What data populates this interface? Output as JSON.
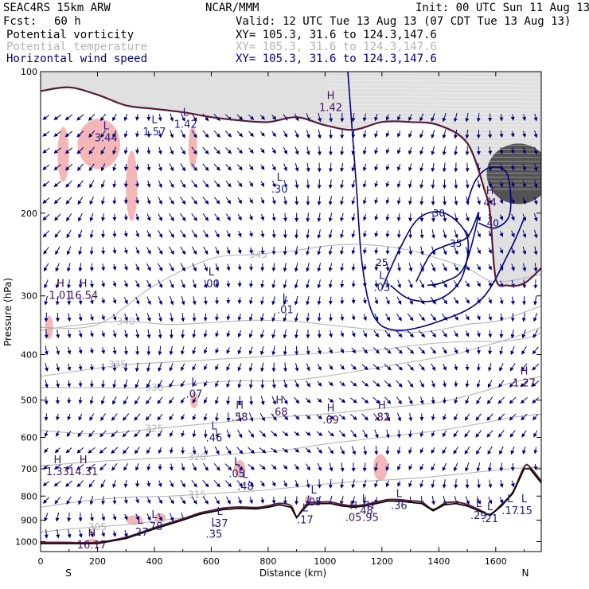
{
  "header": {
    "model": "SEAC4RS 15km ARW",
    "forecast_label": "Fcst:",
    "forecast_value": "60 h",
    "center": "NCAR/MMM",
    "init": "Init: 00 UTC Sun 11 Aug 13",
    "valid": "Valid: 12 UTC Tue 13 Aug 13 (07 CDT Tue 13 Aug 13)"
  },
  "legend": [
    {
      "name": "Potential vorticity",
      "xy": "XY= 105.3, 31.6 to 124.3,147.6",
      "color": "#000000"
    },
    {
      "name": "Potential temperature",
      "xy": "XY= 105.3, 31.6 to 124.3,147.6",
      "color": "#b4b4b4"
    },
    {
      "name": "Horizontal wind speed",
      "xy": "XY= 105.3, 31.6 to 124.3,147.6",
      "color": "#000080"
    }
  ],
  "chart_data": {
    "type": "cross-section",
    "xlabel": "Distance (km)",
    "ylabel": "Pressure (hPa)",
    "xlim": [
      0,
      1760
    ],
    "ylim": [
      100,
      1050
    ],
    "y_scale": "log-pressure (inverted)",
    "x_ticks": [
      0,
      200,
      400,
      600,
      800,
      1000,
      1200,
      1400,
      1600
    ],
    "y_ticks": [
      100,
      200,
      300,
      400,
      500,
      600,
      700,
      800,
      900,
      1000
    ],
    "x_end_labels": {
      "left": "S",
      "right": "N"
    },
    "colors": {
      "axis": "#000000",
      "theta": "#b4b4b4",
      "wind": "#00007f",
      "pv": "#5a1a3a",
      "pv_fill": "#f4b6b6",
      "terrain": "#000000"
    },
    "terrain": [
      [
        0,
        1010
      ],
      [
        80,
        1010
      ],
      [
        200,
        1010
      ],
      [
        300,
        985
      ],
      [
        400,
        940
      ],
      [
        500,
        900
      ],
      [
        560,
        875
      ],
      [
        600,
        865
      ],
      [
        640,
        855
      ],
      [
        700,
        850
      ],
      [
        760,
        852
      ],
      [
        800,
        845
      ],
      [
        840,
        835
      ],
      [
        880,
        845
      ],
      [
        900,
        890
      ],
      [
        920,
        860
      ],
      [
        940,
        835
      ],
      [
        980,
        830
      ],
      [
        1020,
        830
      ],
      [
        1060,
        840
      ],
      [
        1100,
        845
      ],
      [
        1140,
        840
      ],
      [
        1180,
        830
      ],
      [
        1220,
        820
      ],
      [
        1260,
        820
      ],
      [
        1300,
        825
      ],
      [
        1340,
        830
      ],
      [
        1380,
        860
      ],
      [
        1420,
        835
      ],
      [
        1460,
        830
      ],
      [
        1500,
        840
      ],
      [
        1540,
        860
      ],
      [
        1580,
        880
      ],
      [
        1620,
        840
      ],
      [
        1660,
        790
      ],
      [
        1700,
        700
      ],
      [
        1720,
        700
      ],
      [
        1760,
        750
      ]
    ],
    "tropopause": [
      [
        0,
        110
      ],
      [
        100,
        108
      ],
      [
        200,
        112
      ],
      [
        300,
        118
      ],
      [
        400,
        120
      ],
      [
        500,
        122
      ],
      [
        600,
        125
      ],
      [
        700,
        127
      ],
      [
        800,
        128
      ],
      [
        900,
        125
      ],
      [
        1000,
        130
      ],
      [
        1100,
        133
      ],
      [
        1200,
        128
      ],
      [
        1300,
        128
      ],
      [
        1400,
        130
      ],
      [
        1500,
        142
      ],
      [
        1560,
        178
      ],
      [
        1580,
        200
      ],
      [
        1600,
        275
      ],
      [
        1640,
        285
      ],
      [
        1700,
        282
      ],
      [
        1760,
        262
      ]
    ],
    "theta_contours": [
      {
        "label": "345",
        "label_at": [
          765,
          245
        ],
        "points": [
          [
            0,
            350
          ],
          [
            200,
            345
          ],
          [
            400,
            285
          ],
          [
            600,
            250
          ],
          [
            750,
            245
          ],
          [
            900,
            240
          ],
          [
            1000,
            235
          ],
          [
            1100,
            233
          ],
          [
            1200,
            235
          ],
          [
            1300,
            240
          ],
          [
            1400,
            250
          ],
          [
            1500,
            262
          ],
          [
            1600,
            280
          ],
          [
            1760,
            270
          ]
        ]
      },
      {
        "label": "340",
        "label_at": [
          300,
          340
        ],
        "points": [
          [
            0,
            355
          ],
          [
            150,
            345
          ],
          [
            300,
            340
          ],
          [
            450,
            345
          ],
          [
            600,
            342
          ],
          [
            750,
            338
          ],
          [
            900,
            340
          ],
          [
            1050,
            348
          ],
          [
            1200,
            355
          ],
          [
            1350,
            358
          ],
          [
            1500,
            345
          ],
          [
            1600,
            340
          ],
          [
            1700,
            325
          ],
          [
            1760,
            315
          ]
        ]
      },
      {
        "label": "335",
        "label_at": [
          270,
          420
        ],
        "points": [
          [
            0,
            445
          ],
          [
            150,
            432
          ],
          [
            300,
            420
          ],
          [
            450,
            415
          ],
          [
            600,
            410
          ],
          [
            750,
            405
          ],
          [
            900,
            400
          ],
          [
            1050,
            395
          ],
          [
            1200,
            390
          ],
          [
            1350,
            380
          ],
          [
            1500,
            375
          ],
          [
            1600,
            375
          ],
          [
            1700,
            370
          ],
          [
            1760,
            360
          ]
        ]
      },
      {
        "label": "330",
        "label_at": [
          400,
          470
        ],
        "points": [
          [
            0,
            470
          ],
          [
            200,
            470
          ],
          [
            400,
            470
          ],
          [
            550,
            460
          ],
          [
            700,
            455
          ],
          [
            850,
            455
          ],
          [
            1000,
            445
          ],
          [
            1150,
            430
          ],
          [
            1300,
            415
          ],
          [
            1450,
            400
          ],
          [
            1550,
            385
          ],
          [
            1650,
            370
          ],
          [
            1760,
            350
          ]
        ]
      },
      {
        "label": "325",
        "label_at": [
          400,
          575
        ],
        "points": [
          [
            0,
            580
          ],
          [
            200,
            590
          ],
          [
            400,
            575
          ],
          [
            600,
            560
          ],
          [
            800,
            545
          ],
          [
            1000,
            535
          ],
          [
            1200,
            520
          ],
          [
            1400,
            505
          ],
          [
            1550,
            480
          ],
          [
            1650,
            460
          ],
          [
            1760,
            445
          ]
        ]
      },
      {
        "label": "320",
        "label_at": [
          550,
          660
        ],
        "points": [
          [
            0,
            690
          ],
          [
            200,
            675
          ],
          [
            400,
            665
          ],
          [
            550,
            660
          ],
          [
            700,
            650
          ],
          [
            850,
            640
          ],
          [
            1000,
            620
          ],
          [
            1200,
            600
          ],
          [
            1400,
            580
          ],
          [
            1550,
            560
          ],
          [
            1650,
            545
          ],
          [
            1760,
            535
          ]
        ]
      },
      {
        "label": "315",
        "label_at": [
          550,
          795
        ],
        "points": [
          [
            0,
            845
          ],
          [
            150,
            820
          ],
          [
            300,
            805
          ],
          [
            450,
            800
          ],
          [
            600,
            790
          ],
          [
            750,
            780
          ],
          [
            900,
            765
          ],
          [
            1050,
            750
          ],
          [
            1200,
            740
          ],
          [
            1350,
            730
          ],
          [
            1500,
            715
          ],
          [
            1650,
            700
          ],
          [
            1760,
            695
          ]
        ]
      },
      {
        "label": "305",
        "label_at": [
          200,
          930
        ],
        "points": [
          [
            0,
            955
          ],
          [
            100,
            940
          ],
          [
            200,
            930
          ],
          [
            300,
            920
          ],
          [
            400,
            905
          ],
          [
            500,
            890
          ]
        ]
      }
    ],
    "wind_speed_contours": [
      {
        "label": "25",
        "label_at": [
          1200,
          255
        ],
        "points": [
          [
            1080,
            100
          ],
          [
            1110,
            175
          ],
          [
            1130,
            255
          ],
          [
            1170,
            330
          ],
          [
            1250,
            355
          ],
          [
            1400,
            340
          ],
          [
            1550,
            305
          ],
          [
            1650,
            240
          ],
          [
            1700,
            205
          ]
        ]
      },
      {
        "label": "30",
        "label_at": [
          1400,
          200
        ],
        "points": [
          [
            1200,
            290
          ],
          [
            1260,
            240
          ],
          [
            1330,
            205
          ],
          [
            1420,
            200
          ],
          [
            1500,
            225
          ],
          [
            1480,
            275
          ],
          [
            1400,
            305
          ],
          [
            1300,
            305
          ],
          [
            1230,
            285
          ]
        ]
      },
      {
        "label": "35",
        "label_at": [
          1460,
          232
        ],
        "points": [
          [
            1320,
            280
          ],
          [
            1370,
            245
          ],
          [
            1420,
            235
          ],
          [
            1500,
            225
          ],
          [
            1540,
            200
          ],
          [
            1490,
            260
          ],
          [
            1420,
            280
          ],
          [
            1360,
            285
          ]
        ]
      },
      {
        "label": "40",
        "label_at": [
          1590,
          210
        ],
        "points": [
          [
            1500,
            190
          ],
          [
            1530,
            170
          ],
          [
            1580,
            160
          ],
          [
            1640,
            165
          ],
          [
            1650,
            200
          ],
          [
            1600,
            215
          ],
          [
            1540,
            210
          ]
        ]
      }
    ],
    "extrema_labels": [
      {
        "type": "L",
        "value": "3.44",
        "x": 230,
        "y": 137
      },
      {
        "type": "L",
        "value": "1.57",
        "x": 400,
        "y": 133
      },
      {
        "type": "L",
        "value": "1.42",
        "x": 510,
        "y": 128
      },
      {
        "type": "H",
        "value": "1.42",
        "x": 1020,
        "y": 118
      },
      {
        "type": "L",
        "value": ".30",
        "x": 840,
        "y": 176
      },
      {
        "type": "H",
        "value": "44",
        "x": 1580,
        "y": 188
      },
      {
        "type": "H",
        "value": "1.01",
        "x": 70,
        "y": 296
      },
      {
        "type": "H",
        "value": "16.54",
        "x": 150,
        "y": 296
      },
      {
        "type": "L",
        "value": ".00",
        "x": 600,
        "y": 280
      },
      {
        "type": "L",
        "value": ".01",
        "x": 860,
        "y": 318
      },
      {
        "type": "L",
        "value": ".03",
        "x": 1200,
        "y": 285
      },
      {
        "type": "L",
        "value": ".07",
        "x": 540,
        "y": 480
      },
      {
        "type": "H",
        "value": "1.27",
        "x": 1700,
        "y": 455
      },
      {
        "type": "H",
        "value": ".58",
        "x": 700,
        "y": 538
      },
      {
        "type": "H",
        "value": ".68",
        "x": 840,
        "y": 525
      },
      {
        "type": "H",
        "value": ".69",
        "x": 1020,
        "y": 545
      },
      {
        "type": "H",
        "value": ".82",
        "x": 1200,
        "y": 538
      },
      {
        "type": "L",
        "value": ".46",
        "x": 610,
        "y": 595
      },
      {
        "type": "H",
        "value": "1.33",
        "x": 60,
        "y": 702
      },
      {
        "type": "H",
        "value": "14.31",
        "x": 150,
        "y": 702
      },
      {
        "type": "L",
        "value": ".05",
        "x": 690,
        "y": 710
      },
      {
        "type": "L",
        "value": ".48",
        "x": 720,
        "y": 755
      },
      {
        "type": "L",
        "value": ".05",
        "x": 960,
        "y": 815
      },
      {
        "type": "L",
        "value": ".48",
        "x": 1140,
        "y": 850
      },
      {
        "type": "L",
        "value": ".36",
        "x": 1260,
        "y": 830
      },
      {
        "type": "L",
        "value": ".17",
        "x": 1650,
        "y": 850
      },
      {
        "type": "L",
        "value": ".29",
        "x": 1540,
        "y": 870
      },
      {
        "type": "L",
        "value": ".21",
        "x": 1580,
        "y": 885
      },
      {
        "type": "L",
        "value": ".15",
        "x": 1700,
        "y": 850
      },
      {
        "type": "L",
        "value": ".78",
        "x": 400,
        "y": 920
      },
      {
        "type": "L",
        "value": ".27",
        "x": 350,
        "y": 945
      },
      {
        "type": "L",
        "value": ".37",
        "x": 630,
        "y": 905
      },
      {
        "type": "L",
        "value": ".35",
        "x": 610,
        "y": 955
      },
      {
        "type": "L",
        "value": ".17",
        "x": 930,
        "y": 890
      },
      {
        "type": "H",
        "value": ".05",
        "x": 1100,
        "y": 880
      },
      {
        "type": "H",
        "value": ".95",
        "x": 1160,
        "y": 880
      },
      {
        "type": "H",
        "value": "16.17",
        "x": 180,
        "y": 1005
      }
    ]
  }
}
